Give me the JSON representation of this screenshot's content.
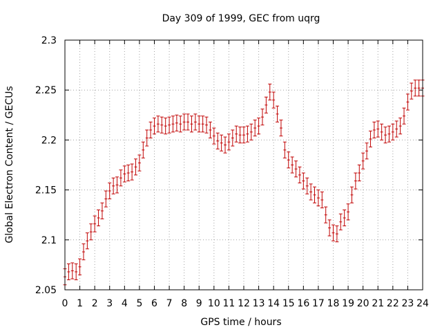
{
  "chart_data": {
    "type": "line",
    "title": "Day 309 of 1999, GEC from uqrg",
    "xlabel": "GPS time / hours",
    "ylabel": "Global Electron Content / GECUs",
    "xlim": [
      0,
      24
    ],
    "ylim": [
      2.05,
      2.3
    ],
    "grid": true,
    "xticks": [
      "0",
      "1",
      "2",
      "3",
      "4",
      "5",
      "6",
      "7",
      "8",
      "9",
      "10",
      "11",
      "12",
      "13",
      "14",
      "15",
      "16",
      "17",
      "18",
      "19",
      "20",
      "21",
      "22",
      "23",
      "24"
    ],
    "yticks": [
      "2.05",
      "2.1",
      "2.15",
      "2.2",
      "2.25",
      "2.3"
    ],
    "series": [
      {
        "name": "GEC",
        "color": "#c00000",
        "error": 0.008,
        "x": [
          0,
          0.25,
          0.5,
          0.75,
          1,
          1.25,
          1.5,
          1.75,
          2,
          2.25,
          2.5,
          2.75,
          3,
          3.25,
          3.5,
          3.75,
          4,
          4.25,
          4.5,
          4.75,
          5,
          5.25,
          5.5,
          5.75,
          6,
          6.25,
          6.5,
          6.75,
          7,
          7.25,
          7.5,
          7.75,
          8,
          8.25,
          8.5,
          8.75,
          9,
          9.25,
          9.5,
          9.75,
          10,
          10.25,
          10.5,
          10.75,
          11,
          11.25,
          11.5,
          11.75,
          12,
          12.25,
          12.5,
          12.75,
          13,
          13.25,
          13.5,
          13.75,
          14,
          14.25,
          14.5,
          14.75,
          15,
          15.25,
          15.5,
          15.75,
          16,
          16.25,
          16.5,
          16.75,
          17,
          17.25,
          17.5,
          17.75,
          18,
          18.25,
          18.5,
          18.75,
          19,
          19.25,
          19.5,
          19.75,
          20,
          20.25,
          20.5,
          20.75,
          21,
          21.25,
          21.5,
          21.75,
          22,
          22.25,
          22.5,
          22.75,
          23,
          23.25,
          23.5,
          23.75,
          24
        ],
        "values": [
          2.063,
          2.068,
          2.069,
          2.068,
          2.073,
          2.088,
          2.099,
          2.108,
          2.116,
          2.122,
          2.129,
          2.141,
          2.149,
          2.154,
          2.155,
          2.162,
          2.166,
          2.167,
          2.168,
          2.173,
          2.177,
          2.19,
          2.202,
          2.21,
          2.214,
          2.216,
          2.215,
          2.214,
          2.215,
          2.216,
          2.217,
          2.216,
          2.218,
          2.218,
          2.216,
          2.218,
          2.216,
          2.216,
          2.215,
          2.21,
          2.204,
          2.199,
          2.197,
          2.195,
          2.198,
          2.202,
          2.206,
          2.205,
          2.205,
          2.206,
          2.208,
          2.212,
          2.214,
          2.223,
          2.235,
          2.248,
          2.24,
          2.226,
          2.212,
          2.19,
          2.18,
          2.175,
          2.171,
          2.165,
          2.159,
          2.154,
          2.148,
          2.145,
          2.142,
          2.14,
          2.125,
          2.112,
          2.107,
          2.106,
          2.118,
          2.122,
          2.128,
          2.145,
          2.159,
          2.167,
          2.179,
          2.189,
          2.201,
          2.21,
          2.211,
          2.208,
          2.205,
          2.206,
          2.208,
          2.211,
          2.214,
          2.224,
          2.238,
          2.249,
          2.252,
          2.252,
          2.252
        ]
      }
    ]
  }
}
